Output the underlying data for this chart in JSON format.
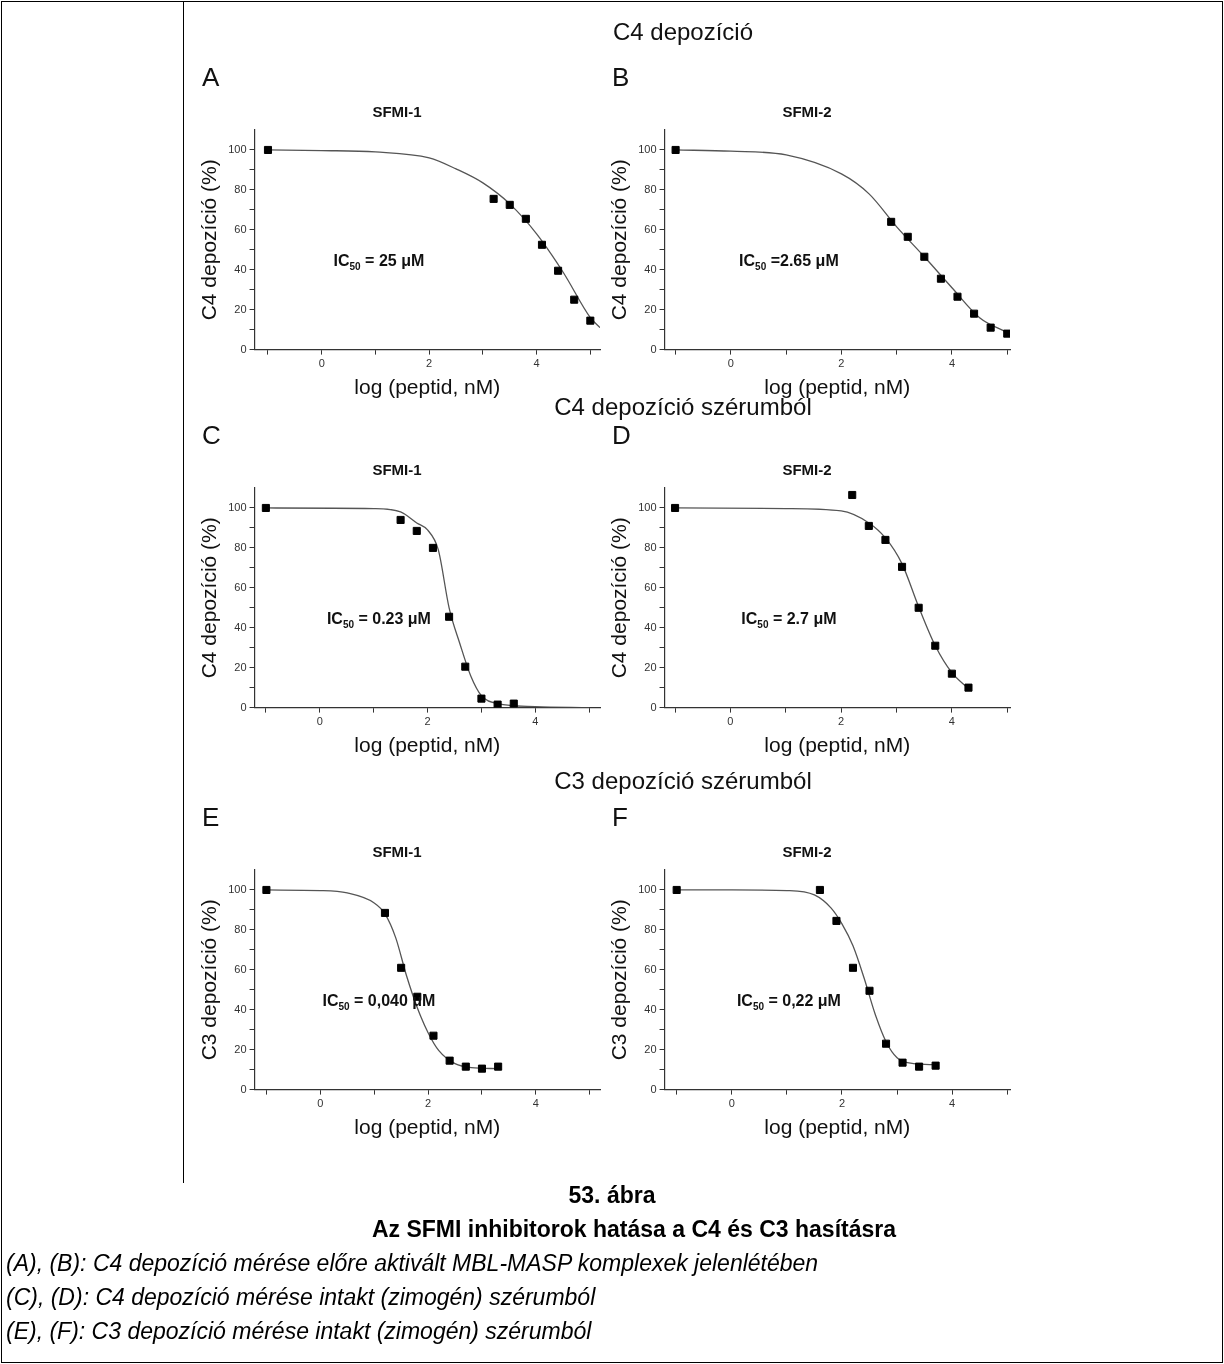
{
  "chart_data": [
    {
      "type": "scatter",
      "title": "SFMI-1",
      "xlabel": "log (peptid, nM)",
      "ylabel": "C4 depozíció (%)",
      "xlim": [
        -1.25,
        5.18
      ],
      "ylim": [
        0,
        110
      ],
      "xticks": [
        {
          "value": -1,
          "label": null
        },
        0,
        {
          "value": 1,
          "label": null
        },
        2,
        {
          "value": 3,
          "label": null
        },
        4,
        {
          "value": 5,
          "label": null
        }
      ],
      "yticks": [
        0,
        {
          "value": 10,
          "label": null
        },
        20,
        {
          "value": 30,
          "label": null
        },
        40,
        {
          "value": 50,
          "label": null
        },
        60,
        {
          "value": 70,
          "label": null
        },
        80,
        {
          "value": 90,
          "label": null
        },
        100
      ],
      "marker": "square",
      "annotations": [
        "A",
        "IC$_{50}$ = 25 μM",
        "C4 depozíció"
      ],
      "series": [
        {
          "type": "scatter",
          "color": "#000000",
          "x": [
            -1,
            3.2,
            3.5,
            3.8,
            4.1,
            4.4,
            4.7,
            5.0
          ],
          "values": [
            100,
            75.5,
            72.5,
            65.5,
            52.5,
            39.5,
            25,
            14.5
          ]
        },
        {
          "type": "line",
          "color": "#555555",
          "marker": "none",
          "x": [
            -1,
            0,
            1,
            2,
            2.5,
            3,
            3.5,
            4,
            4.5,
            5,
            5.18
          ],
          "values": [
            100,
            99.7,
            99,
            96,
            90.5,
            83.5,
            73,
            58,
            38.5,
            16,
            11
          ]
        }
      ]
    },
    {
      "type": "scatter",
      "title": "SFMI-2",
      "xlabel": "log (peptid, nM)",
      "ylabel": "C4 depozíció (%)",
      "xlim": [
        -1.2,
        5.05
      ],
      "ylim": [
        0,
        110
      ],
      "xticks": [
        {
          "value": -1,
          "label": null
        },
        0,
        {
          "value": 1,
          "label": null
        },
        2,
        {
          "value": 3,
          "label": null
        },
        4,
        {
          "value": 5,
          "label": null
        }
      ],
      "yticks": [
        0,
        {
          "value": 10,
          "label": null
        },
        20,
        {
          "value": 30,
          "label": null
        },
        40,
        {
          "value": 50,
          "label": null
        },
        60,
        {
          "value": 70,
          "label": null
        },
        80,
        {
          "value": 90,
          "label": null
        },
        100
      ],
      "marker": "square",
      "annotations": [
        "B",
        "IC$_{50}$ =2.65 μM"
      ],
      "series": [
        {
          "type": "scatter",
          "color": "#000000",
          "x": [
            -1,
            2.9,
            3.2,
            3.5,
            3.8,
            4.1,
            4.4,
            4.7,
            5.0
          ],
          "values": [
            100,
            64,
            56.5,
            46.5,
            35.5,
            26.5,
            18,
            11,
            8
          ]
        },
        {
          "type": "line",
          "color": "#555555",
          "marker": "none",
          "x": [
            -1,
            0,
            1,
            2,
            2.5,
            3,
            3.5,
            4,
            4.5,
            5
          ],
          "values": [
            100,
            99.4,
            97.5,
            88,
            78,
            61.5,
            46.5,
            31,
            16,
            8.5
          ]
        }
      ]
    },
    {
      "type": "scatter",
      "title": "SFMI-1",
      "xlabel": "log (peptid, nM)",
      "ylabel": "C4 depozíció (%)",
      "xlim": [
        -1.21,
        5.2
      ],
      "ylim": [
        0,
        110
      ],
      "xticks": [
        {
          "value": -1,
          "label": null
        },
        0,
        {
          "value": 1,
          "label": null
        },
        2,
        {
          "value": 3,
          "label": null
        },
        4,
        {
          "value": 5,
          "label": null
        }
      ],
      "yticks": [
        0,
        {
          "value": 10,
          "label": null
        },
        20,
        {
          "value": 30,
          "label": null
        },
        40,
        {
          "value": 50,
          "label": null
        },
        60,
        {
          "value": 70,
          "label": null
        },
        80,
        {
          "value": 90,
          "label": null
        },
        100
      ],
      "marker": "square",
      "annotations": [
        "C",
        "IC$_{50}$ = 0.23 μM",
        "C4 depozíció szérumból"
      ],
      "series": [
        {
          "type": "scatter",
          "color": "#000000",
          "x": [
            -1,
            1.5,
            1.8,
            2.1,
            2.4,
            2.7,
            3.0,
            3.3,
            3.6
          ],
          "values": [
            100,
            94,
            88.5,
            80,
            45.5,
            20.5,
            4.5,
            1.5,
            2
          ]
        },
        {
          "type": "line",
          "color": "#555555",
          "marker": "none",
          "x": [
            -1,
            1,
            1.5,
            1.8,
            2.0,
            2.2,
            2.4,
            2.6,
            2.8,
            3.0,
            3.3,
            4,
            5
          ],
          "values": [
            100,
            99.7,
            98,
            92.5,
            89,
            79,
            50,
            32,
            16,
            6,
            2,
            0.5,
            0
          ]
        }
      ]
    },
    {
      "type": "scatter",
      "title": "SFMI-2",
      "xlabel": "log (peptid, nM)",
      "ylabel": "C4 depozíció (%)",
      "xlim": [
        -1.19,
        5.05
      ],
      "ylim": [
        0,
        110
      ],
      "xticks": [
        {
          "value": -1,
          "label": null
        },
        0,
        {
          "value": 1,
          "label": null
        },
        2,
        {
          "value": 3,
          "label": null
        },
        4,
        {
          "value": 5,
          "label": null
        }
      ],
      "yticks": [
        0,
        {
          "value": 10,
          "label": null
        },
        20,
        {
          "value": 30,
          "label": null
        },
        40,
        {
          "value": 50,
          "label": null
        },
        60,
        {
          "value": 70,
          "label": null
        },
        80,
        {
          "value": 90,
          "label": null
        },
        100
      ],
      "marker": "square",
      "annotations": [
        "D",
        "IC$_{50}$ = 2.7 μM"
      ],
      "series": [
        {
          "type": "scatter",
          "color": "#000000",
          "x": [
            -1,
            2.2,
            2.5,
            2.8,
            3.1,
            3.4,
            3.7,
            4.0,
            4.3
          ],
          "values": [
            100,
            106.5,
            91,
            84,
            70.5,
            50,
            31,
            17,
            10
          ]
        },
        {
          "type": "line",
          "color": "#555555",
          "marker": "none",
          "x": [
            -1,
            1,
            2,
            2.5,
            2.8,
            3.1,
            3.4,
            3.7,
            4.0,
            4.3
          ],
          "values": [
            100,
            99.7,
            98.5,
            92.5,
            85,
            72,
            50.5,
            31,
            17.5,
            9.5
          ]
        }
      ]
    },
    {
      "type": "scatter",
      "title": "SFMI-1",
      "xlabel": "log (peptid, nM)",
      "ylabel": "C3 depozíció (%)",
      "xlim": [
        -1.22,
        5.19
      ],
      "ylim": [
        0,
        110
      ],
      "xticks": [
        {
          "value": -1,
          "label": null
        },
        0,
        {
          "value": 1,
          "label": null
        },
        2,
        {
          "value": 3,
          "label": null
        },
        4,
        {
          "value": 5,
          "label": null
        }
      ],
      "yticks": [
        0,
        {
          "value": 10,
          "label": null
        },
        20,
        {
          "value": 30,
          "label": null
        },
        40,
        {
          "value": 50,
          "label": null
        },
        60,
        {
          "value": 70,
          "label": null
        },
        80,
        {
          "value": 90,
          "label": null
        },
        100
      ],
      "marker": "square",
      "annotations": [
        "E",
        "IC$_{50}$ = 0,040 μM",
        "C3 depozíció szérumból"
      ],
      "series": [
        {
          "type": "scatter",
          "color": "#000000",
          "x": [
            -1,
            1.2,
            1.5,
            1.8,
            2.1,
            2.4,
            2.7,
            3.0,
            3.3
          ],
          "values": [
            100,
            88.5,
            61,
            46.5,
            27,
            14.5,
            11.5,
            10.5,
            11.5
          ]
        },
        {
          "type": "line",
          "color": "#555555",
          "marker": "none",
          "x": [
            -1,
            0,
            0.5,
            1,
            1.2,
            1.4,
            1.6,
            1.8,
            2.0,
            2.2,
            2.5,
            2.8,
            3.3
          ],
          "values": [
            100,
            99.7,
            98.5,
            93.5,
            88,
            76,
            57,
            41,
            28.5,
            19.5,
            13,
            11,
            10.5
          ]
        }
      ]
    },
    {
      "type": "scatter",
      "title": "SFMI-2",
      "xlabel": "log (peptid, nM)",
      "ylabel": "C3 depozíció (%)",
      "xlim": [
        -1.22,
        5.05
      ],
      "ylim": [
        0,
        110
      ],
      "xticks": [
        {
          "value": -1,
          "label": null
        },
        0,
        {
          "value": 1,
          "label": null
        },
        2,
        {
          "value": 3,
          "label": null
        },
        4,
        {
          "value": 5,
          "label": null
        }
      ],
      "yticks": [
        0,
        {
          "value": 10,
          "label": null
        },
        20,
        {
          "value": 30,
          "label": null
        },
        40,
        {
          "value": 50,
          "label": null
        },
        60,
        {
          "value": 70,
          "label": null
        },
        80,
        {
          "value": 90,
          "label": null
        },
        100
      ],
      "marker": "square",
      "annotations": [
        "F",
        "IC$_{50}$ = 0,22 μM",
        "53. ábra",
        "Az SFMI inhibitorok hatása a C4 és C3 hasításra",
        "(A), (B): C4 depozíció mérése előre aktivált MBL-MASP komplexek jelenlétében",
        "(C), (D): C4 depozíció mérése intakt (zimogén) szérumból",
        "(E), (F): C3 depozíció mérése intakt (zimogén) szérumból"
      ],
      "series": [
        {
          "type": "scatter",
          "color": "#000000",
          "x": [
            -1,
            1.6,
            1.9,
            2.2,
            2.5,
            2.8,
            3.1,
            3.4,
            3.7
          ],
          "values": [
            100,
            100,
            84.5,
            61,
            49.5,
            23,
            13.5,
            11.5,
            12
          ]
        },
        {
          "type": "line",
          "color": "#555555",
          "marker": "none",
          "x": [
            -1,
            0,
            1,
            1.5,
            1.8,
            2.0,
            2.2,
            2.4,
            2.6,
            2.8,
            3.0,
            3.3,
            3.7
          ],
          "values": [
            100,
            100,
            99.7,
            97.5,
            91,
            83,
            72,
            56,
            38,
            24,
            16,
            13,
            12.5
          ]
        }
      ]
    }
  ]
}
